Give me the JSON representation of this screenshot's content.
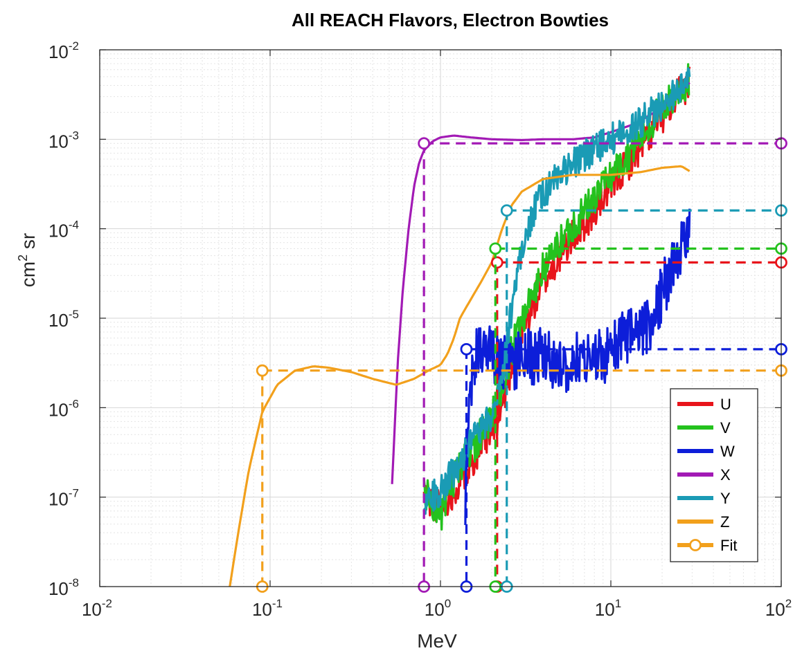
{
  "chart_data": {
    "type": "line",
    "title": "All REACH Flavors, Electron Bowties",
    "xlabel": "MeV",
    "ylabel_base": "cm",
    "ylabel_sup": "2",
    "ylabel_tail": " sr",
    "x_scale": "log",
    "y_scale": "log",
    "xlim": [
      0.01,
      100
    ],
    "ylim": [
      1e-08,
      0.01
    ],
    "grid": "on",
    "legend_position": "bottom-right",
    "x_ticks": [
      {
        "value": 0.01,
        "base": "10",
        "exp": "-2"
      },
      {
        "value": 0.1,
        "base": "10",
        "exp": "-1"
      },
      {
        "value": 1,
        "base": "10",
        "exp": "0"
      },
      {
        "value": 10,
        "base": "10",
        "exp": "1"
      },
      {
        "value": 100,
        "base": "10",
        "exp": "2"
      }
    ],
    "y_ticks": [
      {
        "value": 1e-08,
        "base": "10",
        "exp": "-8"
      },
      {
        "value": 1e-07,
        "base": "10",
        "exp": "-7"
      },
      {
        "value": 1e-06,
        "base": "10",
        "exp": "-6"
      },
      {
        "value": 1e-05,
        "base": "10",
        "exp": "-5"
      },
      {
        "value": 0.0001,
        "base": "10",
        "exp": "-4"
      },
      {
        "value": 0.001,
        "base": "10",
        "exp": "-3"
      },
      {
        "value": 0.01,
        "base": "10",
        "exp": "-2"
      }
    ],
    "series": [
      {
        "name": "U",
        "color": "#e8141b",
        "noise": 0.2,
        "seed": 11,
        "x": [
          0.8,
          1.0,
          1.2,
          1.4,
          1.6,
          1.8,
          2.0,
          2.2,
          2.4,
          2.6,
          3.0,
          3.5,
          4.0,
          5.0,
          6.0,
          8.0,
          10.0,
          14.0,
          20.0,
          29.0
        ],
        "y": [
          1e-07,
          8e-08,
          1.2e-07,
          2e-07,
          3e-07,
          4e-07,
          5e-07,
          8e-07,
          1.5e-06,
          3e-06,
          7e-06,
          1.4e-05,
          2.5e-05,
          5e-05,
          8e-05,
          0.00016,
          0.0003,
          0.0007,
          0.0018,
          0.0045
        ],
        "fit": {
          "x": 2.15,
          "y": 4.2e-05
        }
      },
      {
        "name": "V",
        "color": "#24c21e",
        "noise": 0.2,
        "seed": 23,
        "x": [
          0.8,
          1.0,
          1.2,
          1.4,
          1.6,
          1.8,
          2.0,
          2.2,
          2.4,
          2.6,
          3.0,
          3.5,
          4.0,
          5.0,
          6.0,
          8.0,
          10.0,
          14.0,
          20.0,
          29.0
        ],
        "y": [
          1.2e-07,
          6e-08,
          1.5e-07,
          3e-07,
          4e-07,
          6e-07,
          8e-07,
          1.2e-06,
          2e-06,
          4e-06,
          1e-05,
          1.8e-05,
          3.5e-05,
          7e-05,
          0.00011,
          0.00022,
          0.0004,
          0.0009,
          0.0022,
          0.0046
        ],
        "fit": {
          "x": 2.1,
          "y": 6e-05
        }
      },
      {
        "name": "W",
        "color": "#0d1ed9",
        "noise": 0.32,
        "seed": 37,
        "x": [
          1.4,
          1.5,
          1.7,
          2.0,
          2.5,
          3.0,
          4.0,
          5.0,
          7.0,
          10.0,
          12.0,
          15.0,
          18.0,
          20.0,
          24.0,
          29.0
        ],
        "y": [
          1e-07,
          2e-06,
          5e-06,
          4e-06,
          3e-06,
          3.5e-06,
          4e-06,
          3e-06,
          3.5e-06,
          4e-06,
          6e-06,
          7e-06,
          1e-05,
          2e-05,
          4e-05,
          0.0001
        ],
        "fit": {
          "x": 1.42,
          "y": 4.5e-06
        }
      },
      {
        "name": "X",
        "color": "#a21ab5",
        "noise": 0.0,
        "seed": 0,
        "x": [
          0.52,
          0.56,
          0.6,
          0.65,
          0.7,
          0.75,
          0.8,
          0.9,
          1.0,
          1.2,
          1.5,
          2.0,
          3.0,
          4.0,
          6.0,
          8.0,
          10.0,
          14.0,
          18.0,
          22.0,
          26.0,
          29.0
        ],
        "y": [
          1.4e-07,
          3e-06,
          2e-05,
          0.0001,
          0.0003,
          0.00055,
          0.00075,
          0.00095,
          0.00105,
          0.0011,
          0.00105,
          0.001,
          0.00098,
          0.001,
          0.001,
          0.00105,
          0.0012,
          0.0015,
          0.002,
          0.0027,
          0.0035,
          0.0043
        ],
        "fit": {
          "x": 0.8,
          "y": 0.0009
        }
      },
      {
        "name": "Y",
        "color": "#1a9bb5",
        "noise": 0.18,
        "seed": 53,
        "x": [
          0.8,
          1.0,
          1.2,
          1.5,
          1.8,
          2.0,
          2.2,
          2.4,
          2.6,
          2.8,
          3.0,
          3.5,
          4.0,
          5.0,
          6.0,
          7.0,
          8.0,
          10.0,
          14.0,
          20.0,
          29.0
        ],
        "y": [
          9e-08,
          1.2e-07,
          2e-07,
          4e-07,
          6e-07,
          8e-07,
          1.5e-06,
          4e-06,
          1.2e-05,
          3e-05,
          6e-05,
          0.00015,
          0.00025,
          0.0004,
          0.00055,
          0.00065,
          0.00075,
          0.001,
          0.0014,
          0.0025,
          0.0046
        ],
        "fit": {
          "x": 2.45,
          "y": 0.00016
        }
      },
      {
        "name": "Z",
        "color": "#f2a01c",
        "noise": 0.0,
        "seed": 0,
        "x": [
          0.058,
          0.065,
          0.075,
          0.09,
          0.11,
          0.14,
          0.18,
          0.22,
          0.3,
          0.4,
          0.55,
          0.7,
          0.85,
          1.0,
          1.1,
          1.2,
          1.3,
          1.5,
          1.7,
          2.0,
          2.3,
          2.6,
          3.0,
          4.0,
          6.0,
          10.0,
          15.0,
          20.0,
          26.0,
          29.0
        ],
        "y": [
          1e-08,
          4e-08,
          2e-07,
          9e-07,
          1.8e-06,
          2.6e-06,
          2.9e-06,
          2.8e-06,
          2.5e-06,
          2.1e-06,
          1.8e-06,
          2.1e-06,
          2.6e-06,
          3e-06,
          4e-06,
          6e-06,
          1e-05,
          1.6e-05,
          2.4e-05,
          4.2e-05,
          0.0001,
          0.00018,
          0.00026,
          0.00036,
          0.0004,
          0.0004,
          0.00043,
          0.00048,
          0.0005,
          0.00044
        ],
        "fit": {
          "x": 0.09,
          "y": 2.6e-06
        }
      }
    ],
    "fit_label": "Fit",
    "fit_legend_color": "#f2a01c"
  }
}
